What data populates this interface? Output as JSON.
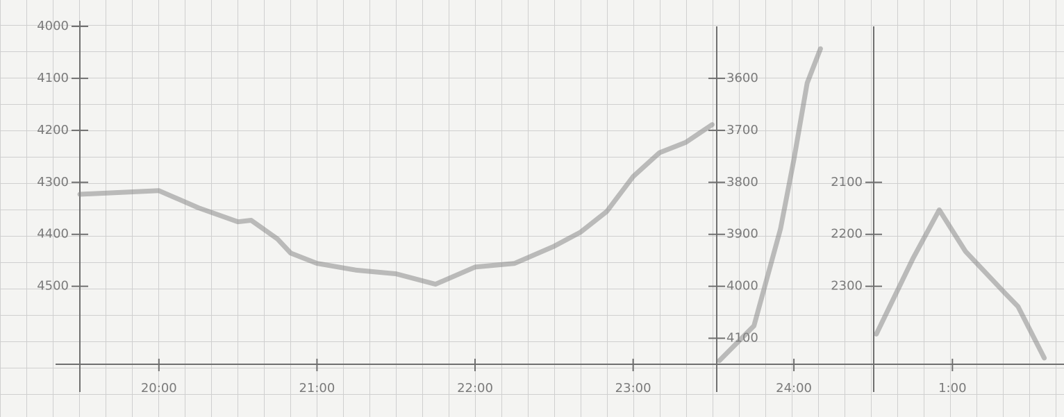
{
  "chart_data": [
    {
      "type": "line",
      "color": "#8a8a8a",
      "invert_y": true,
      "y_axis_side": "left",
      "x": [
        "19:30",
        "20:00",
        "20:15",
        "20:30",
        "20:35",
        "20:45",
        "20:50",
        "21:00",
        "21:15",
        "21:30",
        "21:45",
        "22:00",
        "22:15",
        "22:30",
        "22:40",
        "22:50",
        "23:00",
        "23:10",
        "23:20",
        "23:30"
      ],
      "values": [
        4323,
        4316,
        4349,
        4376,
        4373,
        4409,
        4436,
        4456,
        4469,
        4476,
        4496,
        4463,
        4456,
        4423,
        4396,
        4356,
        4289,
        4243,
        4223,
        4189
      ],
      "xlim": [
        "19:30",
        "23:32"
      ],
      "xticks": [
        "20:00",
        "21:00",
        "22:00",
        "23:00"
      ],
      "ylim": [
        4000,
        4650
      ],
      "yticks": [
        4000,
        4100,
        4200,
        4300,
        4400,
        4500
      ]
    },
    {
      "type": "line",
      "color": "#8a8a8a",
      "invert_y": true,
      "y_axis_side": "right",
      "x": [
        "23:32",
        "23:45",
        "23:55",
        "24:00",
        "24:05",
        "24:10"
      ],
      "values": [
        4143,
        4076,
        3889,
        3756,
        3609,
        3543
      ],
      "xlim": [
        "23:31",
        "24:30"
      ],
      "xticks": [
        "24:00"
      ],
      "ylim": [
        3500,
        4150
      ],
      "yticks": [
        3600,
        3700,
        3800,
        3900,
        4000,
        4100
      ]
    },
    {
      "type": "line",
      "color": "#8a8a8a",
      "invert_y": true,
      "y_axis_side": "left",
      "x": [
        "0:31",
        "0:45",
        "0:55",
        "1:05",
        "1:20",
        "1:25",
        "1:35"
      ],
      "values": [
        2392,
        2246,
        2153,
        2233,
        2313,
        2339,
        2438
      ],
      "xlim": [
        "0:30",
        "1:42"
      ],
      "xticks": [
        "1:00"
      ],
      "ylim": [
        1800,
        2450
      ],
      "yticks": [
        2100,
        2200,
        2300
      ]
    }
  ]
}
